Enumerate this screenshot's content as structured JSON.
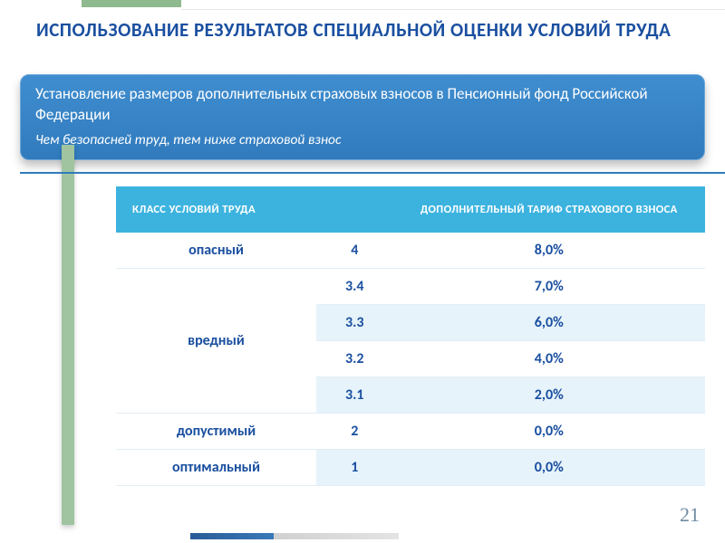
{
  "colors": {
    "title": "#1a4fa0",
    "callout_bg_top": "#3f8dcf",
    "callout_bg_bottom": "#317bbd",
    "table_header_bg": "#3cb3df",
    "row_alt_bg": "#e6f3fa",
    "accent_green": "#8fba8f",
    "vbar_green": "#9fc49f",
    "hrule": "#2f7bbd",
    "cell_text": "#1a4fa0"
  },
  "title": "ИСПОЛЬЗОВАНИЕ РЕЗУЛЬТАТОВ СПЕЦИАЛЬНОЙ ОЦЕНКИ УСЛОВИЙ ТРУДА",
  "callout": {
    "lead": "Установление размеров дополнительных страховых взносов в Пенсионный фонд Российской Федерации",
    "sub": "Чем безопасней труд, тем ниже страховой взнос"
  },
  "table": {
    "headers": {
      "class": "КЛАСС УСЛОВИЙ ТРУДА",
      "rate": "ДОПОЛНИТЕЛЬНЫЙ ТАРИФ СТРАХОВОГО ВЗНОСА"
    },
    "rows": [
      {
        "class": "опасный",
        "code": "4",
        "rate": "8,0%",
        "alt": false,
        "rowspan": 1
      },
      {
        "class": "вредный",
        "code": "3.4",
        "rate": "7,0%",
        "alt": false,
        "rowspan": 4
      },
      {
        "class": "",
        "code": "3.3",
        "rate": "6,0%",
        "alt": true,
        "rowspan": 0
      },
      {
        "class": "",
        "code": "3.2",
        "rate": "4,0%",
        "alt": false,
        "rowspan": 0
      },
      {
        "class": "",
        "code": "3.1",
        "rate": "2,0%",
        "alt": true,
        "rowspan": 0
      },
      {
        "class": "допустимый",
        "code": "2",
        "rate": "0,0%",
        "alt": false,
        "rowspan": 1
      },
      {
        "class": "оптимальный",
        "code": "1",
        "rate": "0,0%",
        "alt": true,
        "rowspan": 1
      }
    ]
  },
  "page_number": "21"
}
